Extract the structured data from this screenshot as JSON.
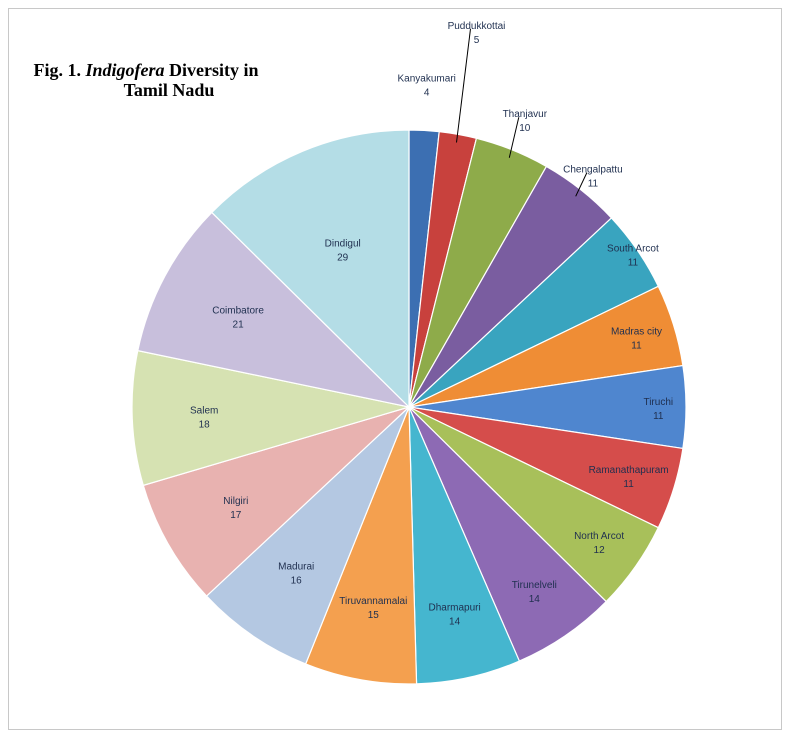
{
  "chart_data": {
    "type": "pie",
    "title_prefix": "Fig. 1. ",
    "title_italic": "Indigofera",
    "title_line1_suffix": " Diversity in",
    "title_line2": "Tamil Nadu",
    "categories": [
      "Kanyakumari",
      "Puddukkottai",
      "Thanjavur",
      "Chengalpattu",
      "South Arcot",
      "Madras city",
      "Tiruchi",
      "Ramanathapuram",
      "North Arcot",
      "Tirunelveli",
      "Dharmapuri",
      "Tiruvannamalai",
      "Madurai",
      "Nilgiri",
      "Salem",
      "Coimbatore",
      "Dindigul"
    ],
    "values": [
      4,
      5,
      10,
      11,
      11,
      11,
      11,
      11,
      12,
      14,
      14,
      15,
      16,
      17,
      18,
      21,
      29
    ],
    "colors": [
      "#3c6fb2",
      "#c8413d",
      "#8eab4a",
      "#7a5da0",
      "#39a4bf",
      "#ef8d35",
      "#4f86cf",
      "#d54d4b",
      "#a8c05a",
      "#8d6ab4",
      "#45b6cf",
      "#f4a04f",
      "#b4c8e2",
      "#e8b2b0",
      "#d6e2b2",
      "#c8bfdc",
      "#b4dde6"
    ],
    "legend": "none"
  }
}
